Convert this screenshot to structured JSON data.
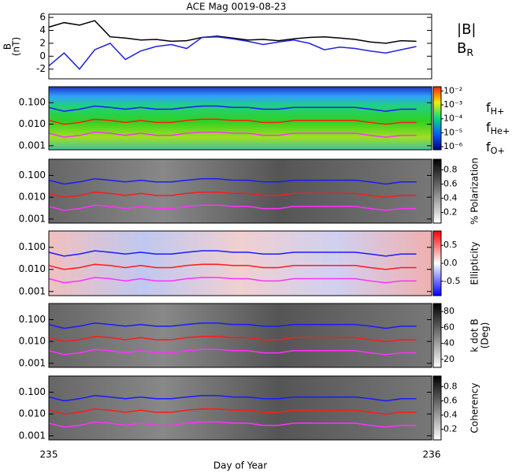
{
  "chart_data": [
    {
      "type": "line",
      "title": "ACE Mag 0019-08-23",
      "ylabel": [
        "B",
        "(nT)"
      ],
      "x": [
        235,
        235.04,
        235.08,
        235.12,
        235.16,
        235.2,
        235.24,
        235.28,
        235.32,
        235.36,
        235.4,
        235.44,
        235.48,
        235.52,
        235.56,
        235.6,
        235.64,
        235.68,
        235.72,
        235.76,
        235.8,
        235.84,
        235.88,
        235.92,
        235.96
      ],
      "xlim": [
        235,
        236
      ],
      "ylim": [
        -3.5,
        6.5
      ],
      "yticks": [
        -2,
        0,
        2,
        4,
        6
      ],
      "series": [
        {
          "name": "|B|",
          "color": "#000000",
          "values": [
            4.5,
            5.2,
            4.8,
            5.5,
            3.0,
            2.8,
            2.5,
            2.6,
            2.3,
            2.4,
            2.9,
            3.1,
            2.8,
            2.5,
            2.6,
            2.4,
            2.7,
            2.9,
            3.0,
            2.8,
            2.6,
            2.2,
            2.0,
            2.4,
            2.3
          ]
        },
        {
          "name": "BR",
          "color": "#2020e0",
          "values": [
            -1.5,
            0.5,
            -2.0,
            1.0,
            2.0,
            -0.5,
            0.8,
            1.5,
            1.8,
            1.2,
            2.9,
            3.0,
            2.7,
            2.3,
            1.8,
            2.2,
            2.5,
            2.0,
            1.0,
            1.4,
            1.2,
            0.8,
            0.5,
            1.0,
            1.5
          ]
        }
      ]
    },
    {
      "type": "line",
      "log": true,
      "x": [
        235,
        235.04,
        235.08,
        235.12,
        235.16,
        235.2,
        235.24,
        235.28,
        235.32,
        235.36,
        235.4,
        235.44,
        235.48,
        235.52,
        235.56,
        235.6,
        235.64,
        235.68,
        235.72,
        235.76,
        235.8,
        235.84,
        235.88,
        235.92,
        235.96
      ],
      "xlim": [
        235,
        236
      ],
      "ylim": [
        0.00065,
        0.55
      ],
      "yticks": [
        {
          "value": 0.1,
          "label": "0.100"
        },
        {
          "value": 0.01,
          "label": "0.010"
        },
        {
          "value": 0.001,
          "label": "0.001"
        }
      ],
      "series": [
        {
          "name": "fH+",
          "color": "#1a1aff",
          "values": [
            0.06,
            0.04,
            0.05,
            0.07,
            0.06,
            0.05,
            0.06,
            0.05,
            0.05,
            0.06,
            0.07,
            0.07,
            0.06,
            0.06,
            0.05,
            0.05,
            0.06,
            0.06,
            0.06,
            0.06,
            0.06,
            0.05,
            0.04,
            0.05,
            0.05
          ]
        },
        {
          "name": "fHe+",
          "color": "#ff1a1a",
          "values": [
            0.015,
            0.01,
            0.012,
            0.017,
            0.015,
            0.012,
            0.015,
            0.012,
            0.012,
            0.015,
            0.017,
            0.017,
            0.015,
            0.015,
            0.012,
            0.012,
            0.015,
            0.015,
            0.015,
            0.015,
            0.015,
            0.012,
            0.01,
            0.012,
            0.012
          ]
        },
        {
          "name": "fO+",
          "color": "#ff30ff",
          "values": [
            0.0038,
            0.0025,
            0.003,
            0.0043,
            0.0038,
            0.003,
            0.0038,
            0.003,
            0.003,
            0.0038,
            0.0043,
            0.0043,
            0.0038,
            0.0038,
            0.003,
            0.003,
            0.0038,
            0.0038,
            0.0038,
            0.0038,
            0.0038,
            0.003,
            0.0025,
            0.003,
            0.003
          ]
        }
      ],
      "colorbar": {
        "log": true,
        "lim": [
          6e-07,
          0.02
        ],
        "ticks": [
          {
            "value": 0.01,
            "label": "10⁻²"
          },
          {
            "value": 0.001,
            "label": "10⁻³"
          },
          {
            "value": 0.0001,
            "label": "10⁻⁴"
          },
          {
            "value": 1e-05,
            "label": "10⁻⁵"
          },
          {
            "value": 1e-06,
            "label": "10⁻⁶"
          }
        ]
      }
    },
    {
      "type": "line",
      "log": true,
      "ylim": [
        0.00065,
        0.55
      ],
      "yticks": [
        {
          "value": 0.1,
          "label": "0.100"
        },
        {
          "value": 0.01,
          "label": "0.010"
        },
        {
          "value": 0.001,
          "label": "0.001"
        }
      ],
      "colorbar": {
        "title": [
          "% Polarization"
        ],
        "lim": [
          0.05,
          0.95
        ],
        "ticks": [
          0.8,
          0.6,
          0.4,
          0.2
        ]
      }
    },
    {
      "type": "line",
      "log": true,
      "ylim": [
        0.00065,
        0.55
      ],
      "yticks": [
        {
          "value": 0.1,
          "label": "0.100"
        },
        {
          "value": 0.01,
          "label": "0.010"
        },
        {
          "value": 0.001,
          "label": "0.001"
        }
      ],
      "colorbar": {
        "title": [
          "Ellipticity"
        ],
        "lim": [
          -0.9,
          0.9
        ],
        "ticks": [
          0.5,
          {
            "value": 0,
            "label": "0.0"
          },
          -0.5
        ]
      }
    },
    {
      "type": "line",
      "log": true,
      "ylim": [
        0.00065,
        0.55
      ],
      "yticks": [
        {
          "value": 0.1,
          "label": "0.100"
        },
        {
          "value": 0.01,
          "label": "0.010"
        },
        {
          "value": 0.001,
          "label": "0.001"
        }
      ],
      "colorbar": {
        "title": [
          "k dot B",
          "(Deg)"
        ],
        "lim": [
          10,
          90
        ],
        "ticks": [
          80,
          60,
          40,
          20
        ]
      }
    },
    {
      "type": "line",
      "log": true,
      "ylim": [
        0.00065,
        0.55
      ],
      "yticks": [
        {
          "value": 0.1,
          "label": "0.100"
        },
        {
          "value": 0.01,
          "label": "0.010"
        },
        {
          "value": 0.001,
          "label": "0.001"
        }
      ],
      "colorbar": {
        "title": [
          "Coherency"
        ],
        "lim": [
          0.05,
          0.95
        ],
        "ticks": [
          0.8,
          0.6,
          0.4,
          0.2
        ]
      },
      "xlabel": "Day of Year",
      "xlim": [
        235,
        236
      ],
      "xticks": [
        235,
        236
      ]
    }
  ]
}
